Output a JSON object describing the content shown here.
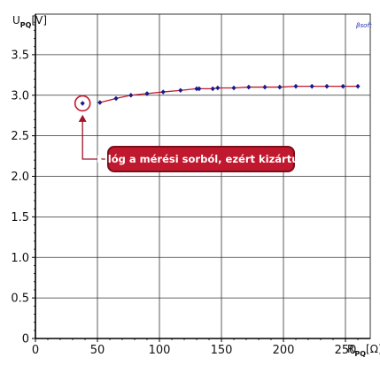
{
  "chart_data": {
    "type": "scatter",
    "title": "",
    "xlabel_main": "R",
    "xlabel_sub": "PQ",
    "xlabel_unit": "[Ω]",
    "ylabel_main": "U",
    "ylabel_sub": "PQ",
    "ylabel_unit": "[V]",
    "xlim": [
      0,
      270
    ],
    "ylim": [
      0,
      4
    ],
    "x_ticks": [
      "0",
      "50",
      "100",
      "150",
      "200",
      "250"
    ],
    "x_tick_values": [
      0,
      50,
      100,
      150,
      200,
      250
    ],
    "y_ticks": [
      "0",
      "0.5",
      "1.0",
      "1.5",
      "2.0",
      "2.5",
      "3.0",
      "3.5"
    ],
    "y_tick_values": [
      0,
      0.5,
      1.0,
      1.5,
      2.0,
      2.5,
      3.0,
      3.5
    ],
    "grid": true,
    "series": [
      {
        "x": [
          52,
          65,
          77,
          90,
          103,
          117,
          130,
          132,
          143,
          147,
          160,
          172,
          185,
          197,
          210,
          223,
          235,
          248,
          260
        ],
        "y": [
          2.91,
          2.96,
          3.0,
          3.02,
          3.04,
          3.06,
          3.08,
          3.08,
          3.08,
          3.09,
          3.09,
          3.1,
          3.1,
          3.1,
          3.11,
          3.11,
          3.11,
          3.11,
          3.11
        ]
      }
    ],
    "outlier": {
      "x": 38,
      "y": 2.9
    },
    "annotation": "Kilóg a mérési sorból, ezért kizártuk",
    "watermark": "βsoft",
    "colors": {
      "marker": "#1a1a8c",
      "line": "#c0182e",
      "callout_fill": "#c0182e",
      "callout_border": "#7a0f1a",
      "arrow": "#a01428",
      "grid": "#333333"
    }
  }
}
